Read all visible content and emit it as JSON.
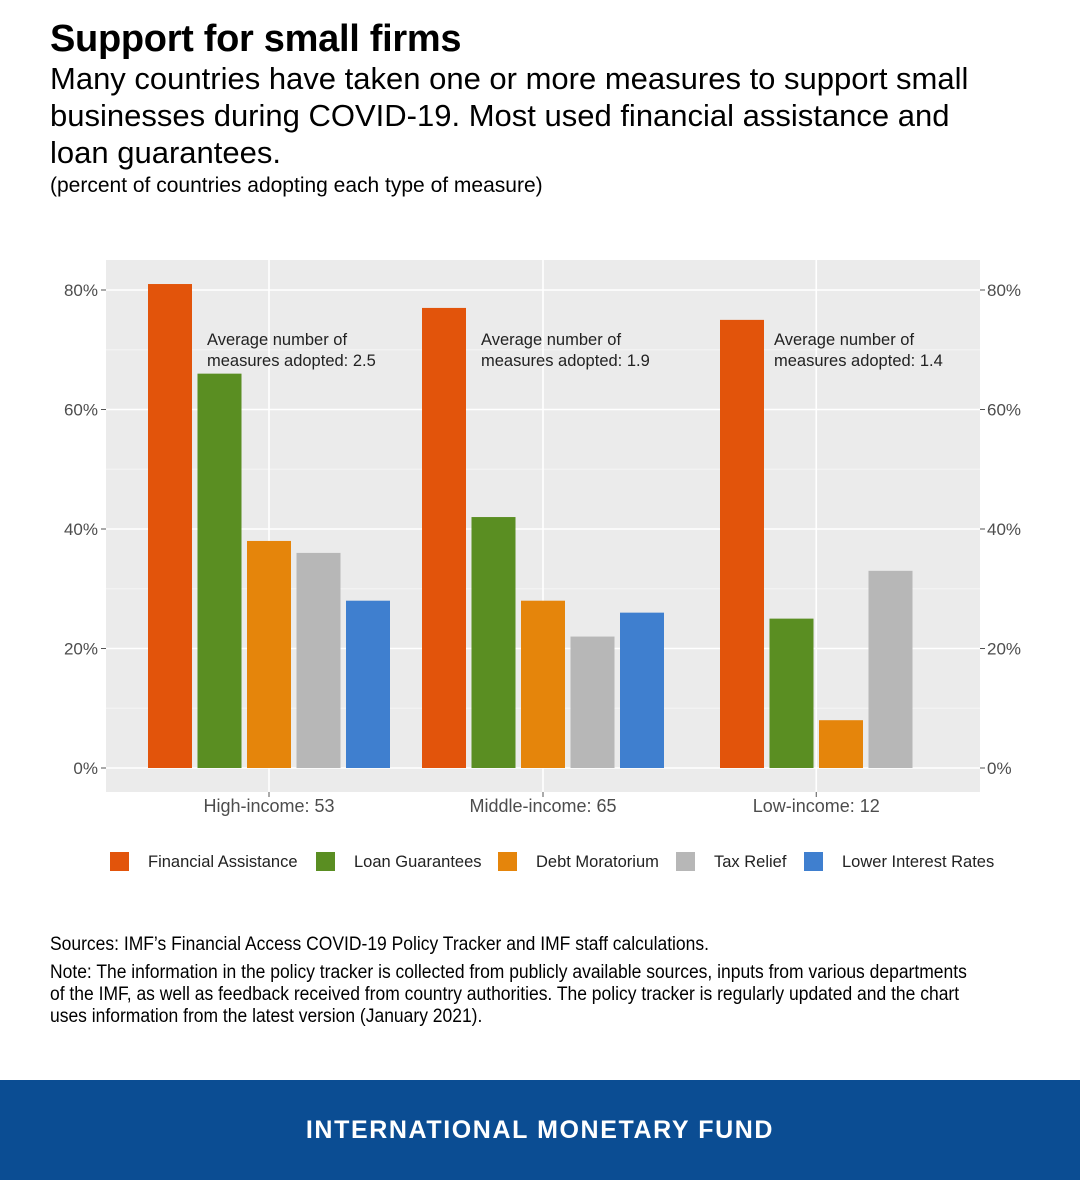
{
  "header": {
    "title": "Support for small firms",
    "subtitle": "Many countries have taken one or more measures to support small businesses during COVID-19. Most used financial assistance and loan guarantees.",
    "units_note": "(percent of countries adopting each type of measure)"
  },
  "chart_data": {
    "type": "bar",
    "title": "",
    "xlabel": "",
    "ylabel": "",
    "ylim": [
      0,
      0.8
    ],
    "y_ticks": [
      "0%",
      "20%",
      "40%",
      "60%",
      "80%"
    ],
    "y_tick_values": [
      0,
      0.2,
      0.4,
      0.6,
      0.8
    ],
    "grid": true,
    "legend_position": "bottom",
    "categories": [
      "High-income: 53",
      "Middle-income: 65",
      "Low-income: 12"
    ],
    "series": [
      {
        "name": "Financial Assistance",
        "color": "#e2540b",
        "values": [
          0.81,
          0.77,
          0.75
        ]
      },
      {
        "name": "Loan Guarantees",
        "color": "#5a8e22",
        "values": [
          0.66,
          0.42,
          0.25
        ]
      },
      {
        "name": "Debt Moratorium",
        "color": "#e5850b",
        "values": [
          0.38,
          0.28,
          0.08
        ]
      },
      {
        "name": "Tax Relief",
        "color": "#b7b7b7",
        "values": [
          0.36,
          0.22,
          0.33
        ]
      },
      {
        "name": "Lower Interest Rates",
        "color": "#3f7fcf",
        "values": [
          0.28,
          0.26,
          null
        ]
      }
    ],
    "annotations": [
      {
        "category": "High-income: 53",
        "lines": [
          "Average number of",
          "measures adopted: 2.5"
        ]
      },
      {
        "category": "Middle-income: 65",
        "lines": [
          "Average number of",
          "measures adopted: 1.9"
        ]
      },
      {
        "category": "Low-income: 12",
        "lines": [
          "Average number of",
          "measures adopted: 1.4"
        ]
      }
    ]
  },
  "footnotes": {
    "sources": "Sources: IMF’s Financial Access COVID-19 Policy Tracker and IMF staff calculations.",
    "note": "Note: The information in the policy tracker is collected from publicly available sources, inputs from various departments of the IMF, as well as feedback received from country authorities. The policy tracker is regularly updated and the chart uses information from the latest version (January 2021)."
  },
  "footer": {
    "organization": "INTERNATIONAL MONETARY FUND",
    "background_color": "#0b4d93"
  }
}
